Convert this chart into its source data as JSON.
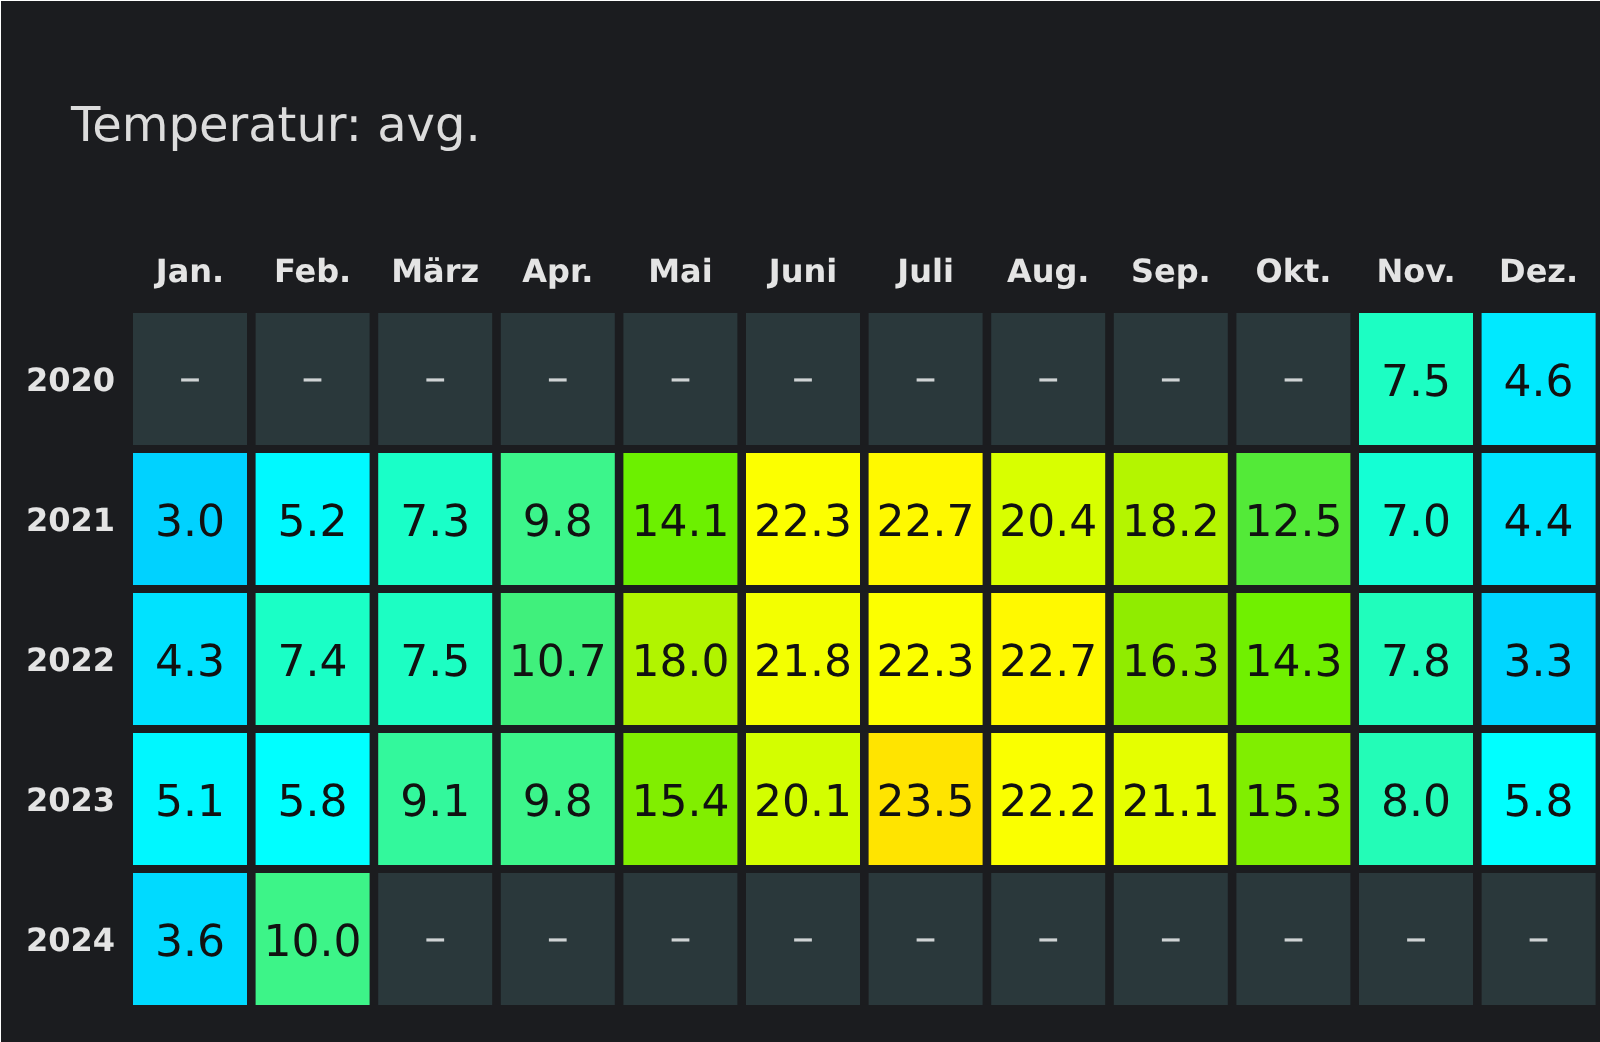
{
  "chart_data": {
    "type": "heatmap",
    "title": "Temperatur: avg.",
    "categories": [
      "Jan.",
      "Feb.",
      "März",
      "Apr.",
      "Mai",
      "Juni",
      "Juli",
      "Aug.",
      "Sep.",
      "Okt.",
      "Nov.",
      "Dez."
    ],
    "y_categories": [
      "2020",
      "2021",
      "2022",
      "2023",
      "2024"
    ],
    "cells": [
      [
        null,
        null,
        null,
        null,
        null,
        null,
        null,
        null,
        null,
        null,
        7.5,
        4.6
      ],
      [
        3.0,
        5.2,
        7.3,
        9.8,
        14.1,
        22.3,
        22.7,
        20.4,
        18.2,
        12.5,
        7.0,
        4.4
      ],
      [
        4.3,
        7.4,
        7.5,
        10.7,
        18.0,
        21.8,
        22.3,
        22.7,
        16.3,
        14.3,
        7.8,
        3.3
      ],
      [
        5.1,
        5.8,
        9.1,
        9.8,
        15.4,
        20.1,
        23.5,
        22.2,
        21.1,
        15.3,
        8.0,
        5.8
      ],
      [
        3.6,
        10.0,
        null,
        null,
        null,
        null,
        null,
        null,
        null,
        null,
        null,
        null
      ]
    ],
    "cell_labels": [
      [
        "–",
        "–",
        "–",
        "–",
        "–",
        "–",
        "–",
        "–",
        "–",
        "–",
        "7.5",
        "4.6"
      ],
      [
        "3.0",
        "5.2",
        "7.3",
        "9.8",
        "14.1",
        "22.3",
        "22.7",
        "20.4",
        "18.2",
        "12.5",
        "7.0",
        "4.4"
      ],
      [
        "4.3",
        "7.4",
        "7.5",
        "10.7",
        "18.0",
        "21.8",
        "22.3",
        "22.7",
        "16.3",
        "14.3",
        "7.8",
        "3.3"
      ],
      [
        "5.1",
        "5.8",
        "9.1",
        "9.8",
        "15.4",
        "20.1",
        "23.5",
        "22.2",
        "21.1",
        "15.3",
        "8.0",
        "5.8"
      ],
      [
        "3.6",
        "10.0",
        "–",
        "–",
        "–",
        "–",
        "–",
        "–",
        "–",
        "–",
        "–",
        "–"
      ]
    ]
  }
}
